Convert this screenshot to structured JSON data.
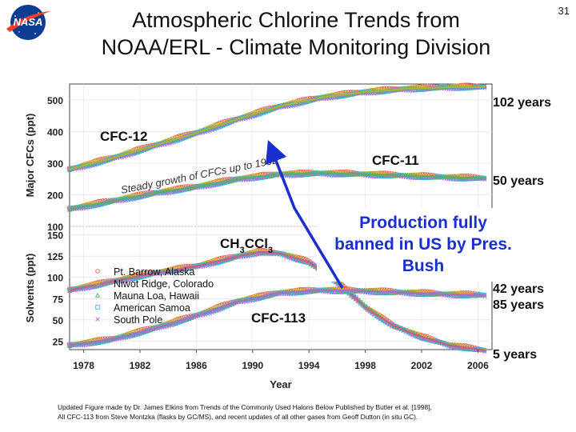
{
  "slide": {
    "title_line1": "Atmospheric Chlorine Trends from",
    "title_line2": "NOAA/ERL - Climate Monitoring Division",
    "page_number": "31",
    "footer_line1": "Updated Figure made by Dr. James Elkins from Trends of the Commonly Used Halons Below Published by Butler et al. [1998],",
    "footer_line2": "All CFC-113 from Steve Montzka (flasks by GC/MS), and recent updates of all other gases from Geoff Dutton (in situ GC)."
  },
  "logo": {
    "text": "NASA",
    "colors": {
      "globe": "#0b3d91",
      "swoosh": "#fc3d21"
    }
  },
  "chart_data": [
    {
      "type": "scatter",
      "panel": "top",
      "ylabel": "Major CFCs (ppt)",
      "xlabel": "Year",
      "xlim": [
        1977,
        2007
      ],
      "ylim": [
        100,
        550
      ],
      "yticks": [
        100,
        200,
        300,
        400,
        500
      ],
      "xticks": [
        1978,
        1982,
        1986,
        1990,
        1994,
        1998,
        2002,
        2006
      ],
      "series": [
        {
          "name": "CFC-12",
          "color": "#b8c400",
          "x": [
            1977,
            1980,
            1983,
            1986,
            1989,
            1992,
            1995,
            1998,
            2001,
            2004,
            2006.5
          ],
          "y": [
            280,
            315,
            355,
            395,
            440,
            480,
            508,
            525,
            535,
            540,
            541
          ]
        },
        {
          "name": "CFC-11",
          "color": "#45b84a",
          "x": [
            1977,
            1980,
            1983,
            1986,
            1989,
            1992,
            1995,
            1998,
            2001,
            2004,
            2006.5
          ],
          "y": [
            155,
            180,
            205,
            225,
            250,
            265,
            268,
            265,
            260,
            255,
            252
          ]
        }
      ],
      "annotations": {
        "cfc12_label": "CFC-12",
        "cfc11_label": "CFC-11",
        "growth_text": "Steady growth of CFCs up to 1992",
        "lifetime_cfc12": "102 years",
        "lifetime_cfc11": "50 years"
      }
    },
    {
      "type": "scatter",
      "panel": "bottom",
      "ylabel": "Solvents (ppt)",
      "ylim": [
        15,
        160
      ],
      "yticks": [
        25,
        50,
        75,
        100,
        125,
        150
      ],
      "series": [
        {
          "name": "CH3CCl3",
          "color": "#e8407a",
          "x": [
            1977,
            1980,
            1983,
            1986,
            1989,
            1990.5,
            1992,
            1994,
            1996,
            1998,
            2000,
            2002,
            2004,
            2006.5
          ],
          "y": [
            85,
            95,
            105,
            113,
            125,
            130,
            128,
            118,
            95,
            65,
            43,
            30,
            20,
            14
          ]
        },
        {
          "name": "CFC-113",
          "color": "#b060d0",
          "x": [
            1977,
            1980,
            1983,
            1986,
            1989,
            1992,
            1995,
            1998,
            2001,
            2004,
            2006.5
          ],
          "y": [
            20,
            27,
            40,
            55,
            72,
            82,
            85,
            84,
            82,
            80,
            79
          ]
        }
      ],
      "annotations": {
        "ch3ccl3_label_main": "CH",
        "ch3ccl3_sub1": "3",
        "ch3ccl3_mid": "CCl",
        "ch3ccl3_sub2": "3",
        "cfc113_label": "CFC-113",
        "lifetime_cfc113": "85 years",
        "lifetime_ccl4": "42 years",
        "lifetime_ch3ccl3": "5 years",
        "ban_text_line1": "Production fully",
        "ban_text_line2": "banned in US by Pres.",
        "ban_text_line3": "Bush"
      },
      "legend": {
        "placement": "bottom-left",
        "entries": [
          {
            "label": "Pt. Barrow, Alaska",
            "marker": "circle",
            "color": "#e0605a"
          },
          {
            "label": "Niwot Ridge, Colorado",
            "marker": "circle",
            "color": "#d9b22a"
          },
          {
            "label": "Mauna Loa, Hawaii",
            "marker": "triangle",
            "color": "#4ab84a"
          },
          {
            "label": "American Samoa",
            "marker": "square",
            "color": "#38b8e0"
          },
          {
            "label": "South Pole",
            "marker": "x",
            "color": "#c060d8"
          }
        ]
      }
    }
  ]
}
